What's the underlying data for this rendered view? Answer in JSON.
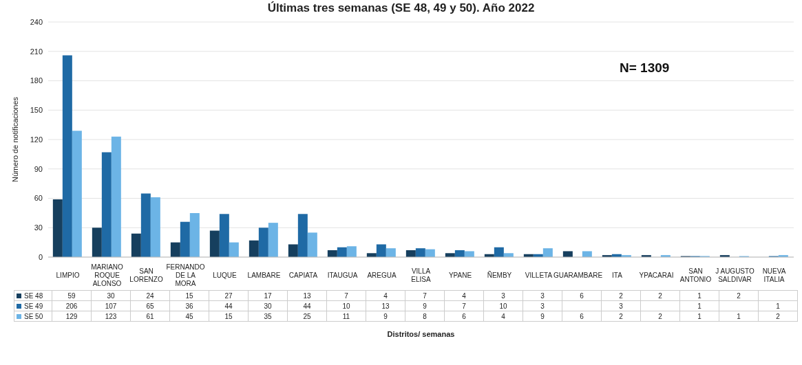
{
  "chart_data": {
    "type": "bar",
    "title": "Últimas tres semanas (SE 48, 49 y 50). Año 2022",
    "ylabel": "Número de notificaciones",
    "annotations": [
      "N= 1309",
      "Distritos/ semanas"
    ],
    "categories": [
      "LIMPIO",
      "MARIANO ROQUE ALONSO",
      "SAN LORENZO",
      "FERNANDO DE LA MORA",
      "LUQUE",
      "LAMBARE",
      "CAPIATA",
      "ITAUGUA",
      "AREGUA",
      "VILLA ELISA",
      "YPANE",
      "ÑEMBY",
      "VILLETA",
      "GUARAMBARE",
      "ITA",
      "YPACARAI",
      "SAN ANTONIO",
      "J AUGUSTO SALDIVAR",
      "NUEVA ITALIA"
    ],
    "series": [
      {
        "name": "SE 48",
        "color": "#163f5e",
        "values": [
          59,
          30,
          24,
          15,
          27,
          17,
          13,
          7,
          4,
          7,
          4,
          3,
          3,
          6,
          2,
          2,
          1,
          2,
          null
        ]
      },
      {
        "name": "SE 49",
        "color": "#1f6aa5",
        "values": [
          206,
          107,
          65,
          36,
          44,
          30,
          44,
          10,
          13,
          9,
          7,
          10,
          3,
          null,
          3,
          null,
          1,
          null,
          1
        ]
      },
      {
        "name": "SE 50",
        "color": "#6cb4e6",
        "values": [
          129,
          123,
          61,
          45,
          15,
          35,
          25,
          11,
          9,
          8,
          6,
          4,
          9,
          6,
          2,
          2,
          1,
          1,
          2
        ]
      }
    ],
    "ylim": [
      0,
      240
    ],
    "yticks": [
      0,
      30,
      60,
      90,
      120,
      150,
      180,
      210,
      240
    ],
    "grid": "y",
    "legend": "bottom",
    "data_labels": true
  }
}
